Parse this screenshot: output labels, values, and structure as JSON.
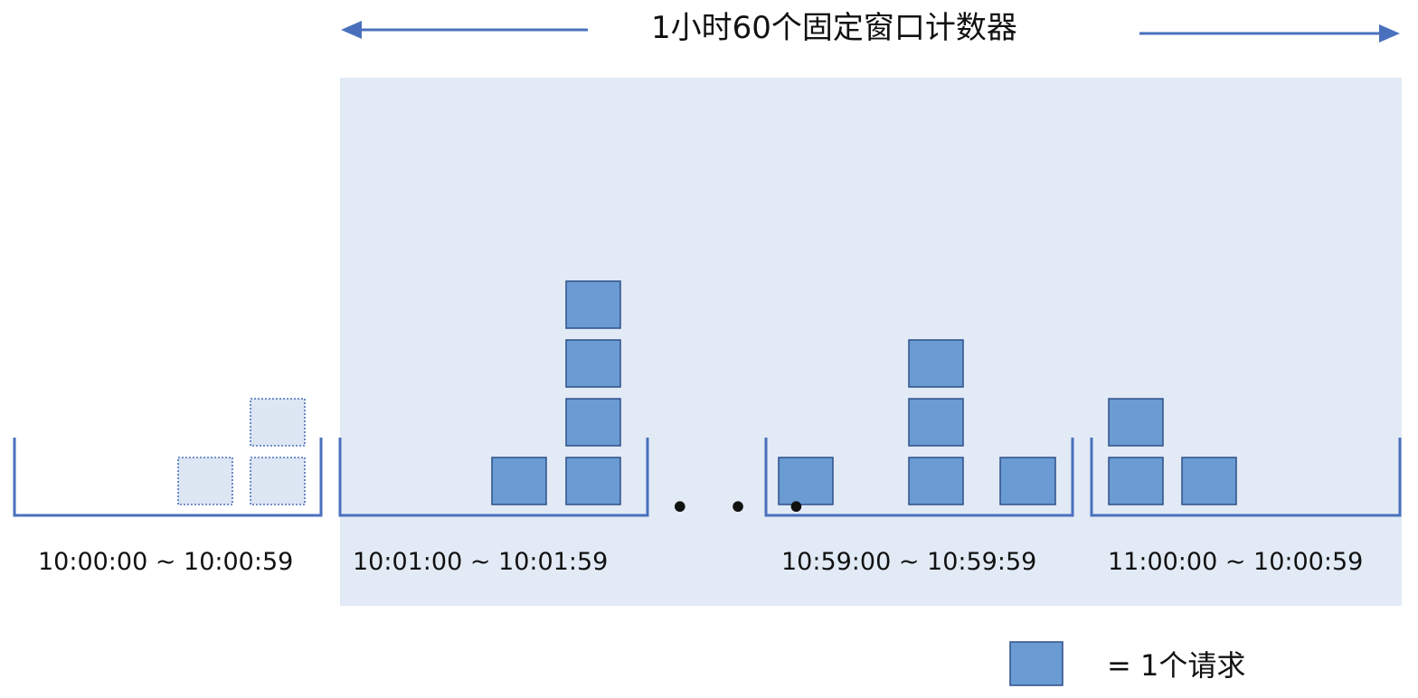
{
  "title": "1小时60个固定窗口计数器",
  "colors": {
    "highlight_band": "#e1eaf5",
    "bucket_line": "#4a70bd",
    "arrow": "#4a70bd",
    "request_fill": "#6a9bd2",
    "request_stroke": "#2f4f88",
    "faded_fill": "#dde6f3",
    "faded_stroke": "#4a70bd"
  },
  "windows": [
    {
      "label": "10:00:00 ~ 10:00:59",
      "requests": 3,
      "columns": [
        0,
        1,
        2
      ],
      "faded": true
    },
    {
      "label": "10:01:00 ~ 10:01:59",
      "requests": 5,
      "columns": [
        0,
        1,
        4
      ],
      "faded": false
    },
    {
      "label": "10:59:00 ~ 10:59:59",
      "requests": 5,
      "columns": [
        1,
        3,
        1
      ],
      "faded": false
    },
    {
      "label": "11:00:00 ~ 10:00:59",
      "requests": 3,
      "columns": [
        2,
        1
      ],
      "faded": false
    }
  ],
  "ellipsis": "• • •",
  "legend": {
    "text": "= 1个请求"
  }
}
